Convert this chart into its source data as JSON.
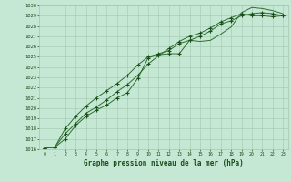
{
  "title": "Graphe pression niveau de la mer (hPa)",
  "x": [
    0,
    1,
    2,
    3,
    4,
    5,
    6,
    7,
    8,
    9,
    10,
    11,
    12,
    13,
    14,
    15,
    16,
    17,
    18,
    19,
    20,
    21,
    22,
    23
  ],
  "line1": [
    1016.1,
    1016.2,
    1017.0,
    1018.3,
    1019.2,
    1019.8,
    1020.3,
    1021.0,
    1021.5,
    1022.9,
    1024.9,
    1025.2,
    1025.3,
    1025.3,
    1026.6,
    1026.5,
    1026.6,
    1027.2,
    1027.9,
    1029.3,
    1029.8,
    1029.7,
    1029.5,
    1029.2
  ],
  "line2": [
    1016.1,
    1016.2,
    1018.0,
    1019.2,
    1020.2,
    1021.0,
    1021.7,
    1022.4,
    1023.2,
    1024.2,
    1025.0,
    1025.3,
    1025.6,
    1026.3,
    1026.6,
    1027.0,
    1027.5,
    1028.2,
    1028.5,
    1029.0,
    1029.2,
    1029.3,
    1029.2,
    1029.0
  ],
  "line3": [
    1016.1,
    1016.2,
    1017.5,
    1018.5,
    1019.5,
    1020.1,
    1020.8,
    1021.6,
    1022.3,
    1023.2,
    1024.3,
    1025.1,
    1025.8,
    1026.5,
    1027.0,
    1027.3,
    1027.8,
    1028.4,
    1028.8,
    1029.2,
    1029.0,
    1029.0,
    1028.9,
    1029.0
  ],
  "ylim": [
    1016,
    1030
  ],
  "xlim": [
    0,
    23
  ],
  "yticks": [
    1016,
    1017,
    1018,
    1019,
    1020,
    1021,
    1022,
    1023,
    1024,
    1025,
    1026,
    1027,
    1028,
    1029,
    1030
  ],
  "xticks": [
    0,
    1,
    2,
    3,
    4,
    5,
    6,
    7,
    8,
    9,
    10,
    11,
    12,
    13,
    14,
    15,
    16,
    17,
    18,
    19,
    20,
    21,
    22,
    23
  ],
  "line_color": "#2d6e2d",
  "marker_color": "#1a4e1a",
  "bg_color": "#c5e8d5",
  "grid_color": "#a0c8b0",
  "text_color": "#1a4e1a"
}
